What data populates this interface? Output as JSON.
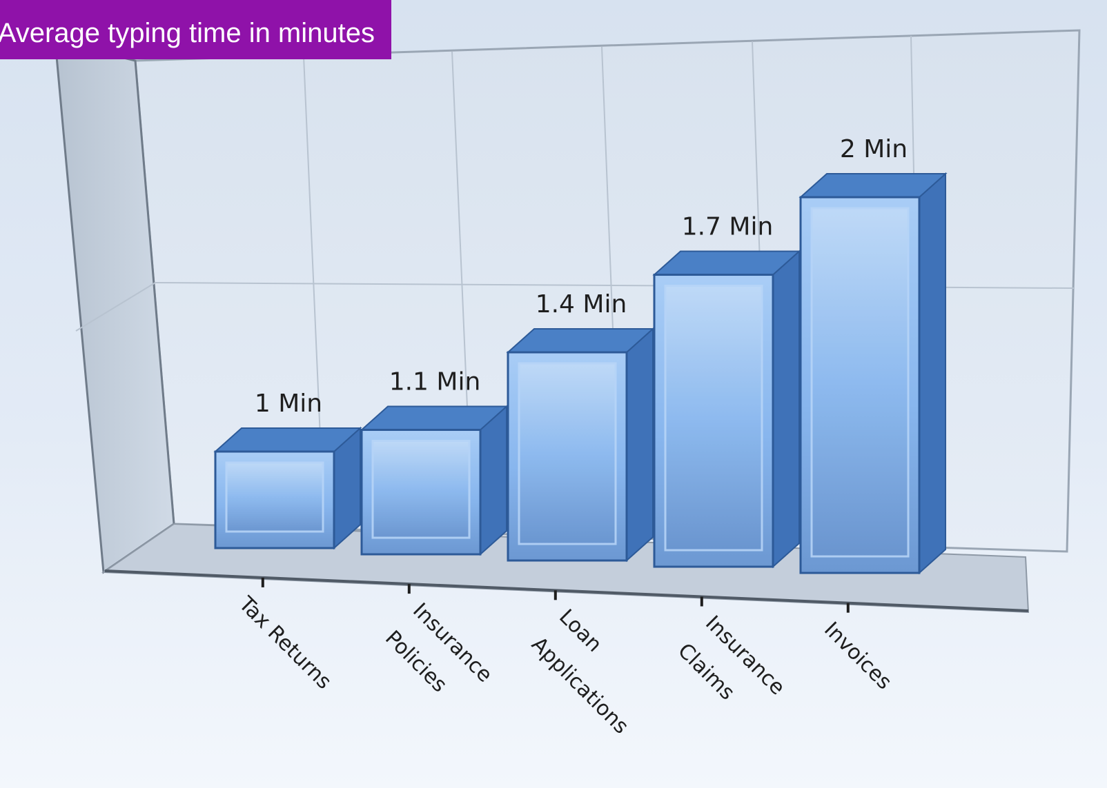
{
  "title": "Average typing time in minutes",
  "colors": {
    "banner": "#8f12a9",
    "bar_front": "#8ab7ee",
    "bar_inner": "#a8cdf6",
    "bar_side": "#3f72b8",
    "bar_top": "#4a80c6",
    "bar_edge": "#2d5a98",
    "floor": "#c5cfdb",
    "wall": "#c9d3df",
    "grid": "#b4bfcc"
  },
  "chart_data": {
    "type": "bar",
    "style": "3d",
    "categories": [
      "Tax Returns",
      "Insurance Policies",
      "Loan Applications",
      "Insurance Claims",
      "Invoices"
    ],
    "category_lines": [
      [
        "Tax Returns"
      ],
      [
        "Insurance",
        "Policies"
      ],
      [
        "Loan",
        "Applications"
      ],
      [
        "Insurance",
        "Claims"
      ],
      [
        "Invoices"
      ]
    ],
    "values": [
      1,
      1.1,
      1.4,
      1.7,
      2
    ],
    "data_labels": [
      "1 Min",
      "1.1 Min",
      "1.4 Min",
      "1.7 Min",
      "2 Min"
    ],
    "title": "Average typing time in minutes",
    "xlabel": "",
    "ylabel": "",
    "ylim": [
      0,
      2
    ],
    "grid": true,
    "legend": "none"
  }
}
